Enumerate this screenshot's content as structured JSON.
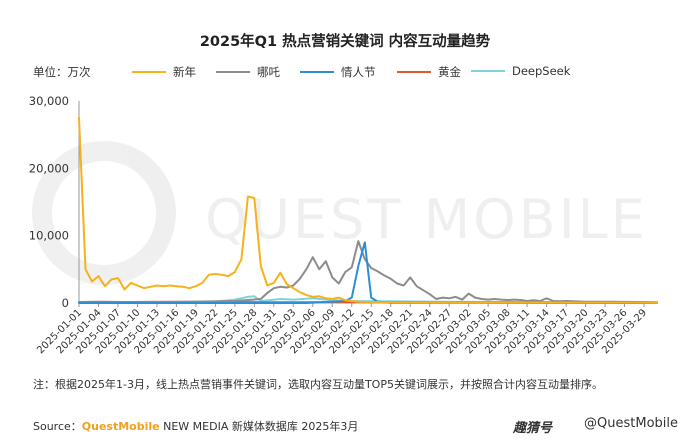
{
  "title": "2025年Q1 热点营销关键词 内容互动量趋势",
  "unit_label": "单位：万次",
  "note": "注：根据2025年1-3月，线上热点营销事件关键词，选取内容互动量TOP5关键词展示，并按照合计内容互动量排序。",
  "source": {
    "prefix": "Source：",
    "brand": "QuestMobile",
    "rest": " NEW MEDIA 新媒体数据库 2025年3月"
  },
  "logo_text": "趣猜号",
  "handle_text": "@QuestMobile",
  "watermark_text": "QUEST MOBILE",
  "colors": {
    "新年": "#f5b21c",
    "哪吒": "#8c8c8c",
    "情人节": "#2b8fd6",
    "黄金": "#e4572e",
    "DeepSeek": "#7fd3e0"
  },
  "chart_data": {
    "type": "line",
    "title": "2025年Q1 热点营销关键词 内容互动量趋势",
    "ylabel": "单位：万次",
    "ylim": [
      0,
      30000
    ],
    "yticks": [
      0,
      10000,
      20000,
      30000
    ],
    "ytick_labels": [
      "0",
      "10,000",
      "20,000",
      "30,000"
    ],
    "xlim": [
      "2025-01-01",
      "2025-03-31"
    ],
    "xtick_labels": [
      "2025-01-01",
      "2025-01-04",
      "2025-01-07",
      "2025-01-10",
      "2025-01-13",
      "2025-01-16",
      "2025-01-19",
      "2025-01-22",
      "2025-01-25",
      "2025-01-28",
      "2025-01-31",
      "2025-02-03",
      "2025-02-06",
      "2025-02-09",
      "2025-02-12",
      "2025-02-15",
      "2025-02-18",
      "2025-02-21",
      "2025-02-24",
      "2025-02-27",
      "2025-03-02",
      "2025-03-05",
      "2025-03-08",
      "2025-03-11",
      "2025-03-14",
      "2025-03-17",
      "2025-03-20",
      "2025-03-23",
      "2025-03-26",
      "2025-03-29"
    ],
    "grid": false,
    "legend": "top",
    "series": [
      {
        "name": "新年",
        "color": "#f5b21c",
        "points": [
          [
            "2025-01-01",
            27500
          ],
          [
            "2025-01-02",
            5000
          ],
          [
            "2025-01-03",
            3200
          ],
          [
            "2025-01-04",
            4000
          ],
          [
            "2025-01-05",
            2500
          ],
          [
            "2025-01-06",
            3500
          ],
          [
            "2025-01-07",
            3700
          ],
          [
            "2025-01-08",
            2000
          ],
          [
            "2025-01-09",
            3000
          ],
          [
            "2025-01-10",
            2600
          ],
          [
            "2025-01-11",
            2200
          ],
          [
            "2025-01-12",
            2400
          ],
          [
            "2025-01-13",
            2600
          ],
          [
            "2025-01-14",
            2500
          ],
          [
            "2025-01-15",
            2600
          ],
          [
            "2025-01-16",
            2500
          ],
          [
            "2025-01-17",
            2400
          ],
          [
            "2025-01-18",
            2200
          ],
          [
            "2025-01-19",
            2500
          ],
          [
            "2025-01-20",
            3000
          ],
          [
            "2025-01-21",
            4200
          ],
          [
            "2025-01-22",
            4300
          ],
          [
            "2025-01-23",
            4200
          ],
          [
            "2025-01-24",
            4000
          ],
          [
            "2025-01-25",
            4600
          ],
          [
            "2025-01-26",
            6500
          ],
          [
            "2025-01-27",
            15800
          ],
          [
            "2025-01-28",
            15600
          ],
          [
            "2025-01-29",
            5500
          ],
          [
            "2025-01-30",
            2600
          ],
          [
            "2025-01-31",
            3000
          ],
          [
            "2025-02-01",
            4500
          ],
          [
            "2025-02-02",
            2800
          ],
          [
            "2025-02-03",
            2200
          ],
          [
            "2025-02-04",
            1600
          ],
          [
            "2025-02-05",
            1200
          ],
          [
            "2025-02-06",
            900
          ],
          [
            "2025-02-07",
            1000
          ],
          [
            "2025-02-08",
            700
          ],
          [
            "2025-02-09",
            600
          ],
          [
            "2025-02-10",
            800
          ],
          [
            "2025-02-11",
            400
          ],
          [
            "2025-02-12",
            300
          ],
          [
            "2025-02-13",
            200
          ],
          [
            "2025-02-15",
            150
          ],
          [
            "2025-02-20",
            100
          ],
          [
            "2025-03-01",
            80
          ],
          [
            "2025-03-31",
            50
          ]
        ]
      },
      {
        "name": "哪吒",
        "color": "#8c8c8c",
        "points": [
          [
            "2025-01-01",
            100
          ],
          [
            "2025-01-15",
            150
          ],
          [
            "2025-01-25",
            300
          ],
          [
            "2025-01-29",
            600
          ],
          [
            "2025-01-30",
            1500
          ],
          [
            "2025-01-31",
            2200
          ],
          [
            "2025-02-01",
            2400
          ],
          [
            "2025-02-02",
            2300
          ],
          [
            "2025-02-03",
            2600
          ],
          [
            "2025-02-04",
            3600
          ],
          [
            "2025-02-05",
            5000
          ],
          [
            "2025-02-06",
            6800
          ],
          [
            "2025-02-07",
            5000
          ],
          [
            "2025-02-08",
            6200
          ],
          [
            "2025-02-09",
            3800
          ],
          [
            "2025-02-10",
            2900
          ],
          [
            "2025-02-11",
            4600
          ],
          [
            "2025-02-12",
            5300
          ],
          [
            "2025-02-13",
            9200
          ],
          [
            "2025-02-14",
            6500
          ],
          [
            "2025-02-15",
            5200
          ],
          [
            "2025-02-16",
            4700
          ],
          [
            "2025-02-17",
            4100
          ],
          [
            "2025-02-18",
            3600
          ],
          [
            "2025-02-19",
            2900
          ],
          [
            "2025-02-20",
            2600
          ],
          [
            "2025-02-21",
            3800
          ],
          [
            "2025-02-22",
            2500
          ],
          [
            "2025-02-23",
            1900
          ],
          [
            "2025-02-24",
            1300
          ],
          [
            "2025-02-25",
            600
          ],
          [
            "2025-02-26",
            800
          ],
          [
            "2025-02-27",
            700
          ],
          [
            "2025-02-28",
            900
          ],
          [
            "2025-03-01",
            500
          ],
          [
            "2025-03-02",
            1400
          ],
          [
            "2025-03-03",
            800
          ],
          [
            "2025-03-04",
            600
          ],
          [
            "2025-03-05",
            500
          ],
          [
            "2025-03-06",
            600
          ],
          [
            "2025-03-07",
            500
          ],
          [
            "2025-03-08",
            450
          ],
          [
            "2025-03-09",
            500
          ],
          [
            "2025-03-10",
            450
          ],
          [
            "2025-03-11",
            300
          ],
          [
            "2025-03-12",
            400
          ],
          [
            "2025-03-13",
            300
          ],
          [
            "2025-03-14",
            700
          ],
          [
            "2025-03-15",
            300
          ],
          [
            "2025-03-16",
            250
          ],
          [
            "2025-03-17",
            300
          ],
          [
            "2025-03-18",
            250
          ],
          [
            "2025-03-20",
            200
          ],
          [
            "2025-03-24",
            200
          ],
          [
            "2025-03-31",
            100
          ]
        ]
      },
      {
        "name": "情人节",
        "color": "#2b8fd6",
        "points": [
          [
            "2025-01-01",
            0
          ],
          [
            "2025-02-05",
            0
          ],
          [
            "2025-02-08",
            150
          ],
          [
            "2025-02-11",
            300
          ],
          [
            "2025-02-12",
            800
          ],
          [
            "2025-02-13",
            5500
          ],
          [
            "2025-02-14",
            9000
          ],
          [
            "2025-02-15",
            800
          ],
          [
            "2025-02-16",
            200
          ],
          [
            "2025-02-18",
            50
          ],
          [
            "2025-03-31",
            0
          ]
        ]
      },
      {
        "name": "黄金",
        "color": "#e4572e",
        "points": [
          [
            "2025-01-01",
            150
          ],
          [
            "2025-01-04",
            200
          ],
          [
            "2025-01-08",
            150
          ],
          [
            "2025-01-15",
            200
          ],
          [
            "2025-01-22",
            150
          ],
          [
            "2025-01-29",
            120
          ],
          [
            "2025-02-05",
            120
          ],
          [
            "2025-02-12",
            150
          ],
          [
            "2025-02-19",
            150
          ],
          [
            "2025-02-26",
            120
          ],
          [
            "2025-03-05",
            120
          ],
          [
            "2025-03-12",
            100
          ],
          [
            "2025-03-19",
            100
          ],
          [
            "2025-03-26",
            100
          ],
          [
            "2025-03-31",
            80
          ]
        ]
      },
      {
        "name": "DeepSeek",
        "color": "#7fd3e0",
        "points": [
          [
            "2025-01-01",
            0
          ],
          [
            "2025-01-20",
            20
          ],
          [
            "2025-01-25",
            500
          ],
          [
            "2025-01-27",
            900
          ],
          [
            "2025-01-28",
            1000
          ],
          [
            "2025-01-29",
            300
          ],
          [
            "2025-02-01",
            600
          ],
          [
            "2025-02-03",
            500
          ],
          [
            "2025-02-06",
            700
          ],
          [
            "2025-02-09",
            400
          ],
          [
            "2025-02-12",
            300
          ],
          [
            "2025-02-18",
            250
          ],
          [
            "2025-02-25",
            200
          ],
          [
            "2025-03-05",
            150
          ],
          [
            "2025-03-15",
            120
          ],
          [
            "2025-03-31",
            80
          ]
        ]
      }
    ]
  }
}
